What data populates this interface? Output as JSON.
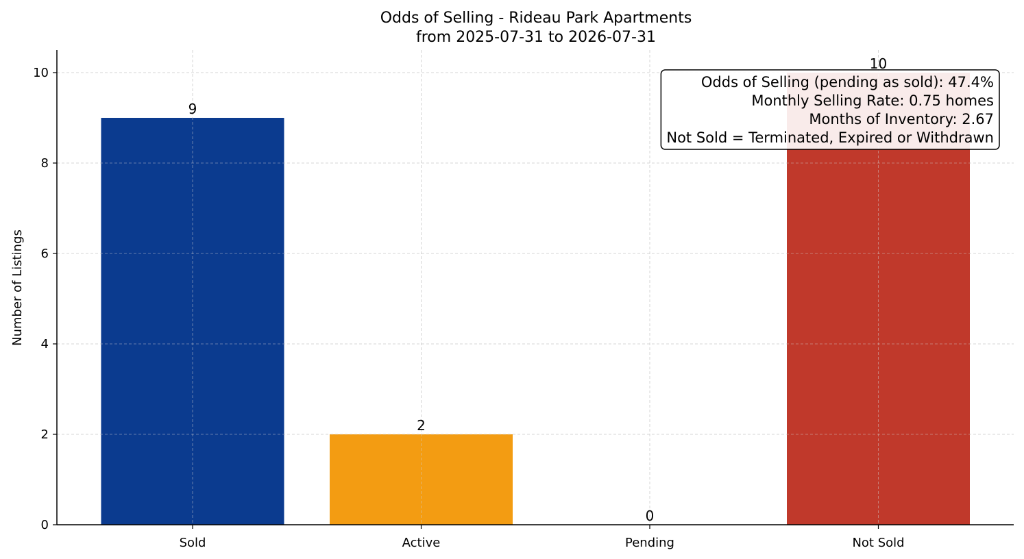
{
  "chart_data": {
    "type": "bar",
    "title": "Odds of Selling - Rideau Park Apartments",
    "subtitle": "from 2025-07-31 to 2026-07-31",
    "xlabel": "",
    "ylabel": "Number of Listings",
    "categories": [
      "Sold",
      "Active",
      "Pending",
      "Not Sold"
    ],
    "values": [
      9,
      2,
      0,
      10
    ],
    "colors": [
      "#0b3b8f",
      "#f39c12",
      "#f39c12",
      "#c0392b"
    ],
    "ylim": [
      0,
      10.5
    ],
    "yticks": [
      0,
      2,
      4,
      6,
      8,
      10
    ],
    "grid": true,
    "annotation": {
      "lines": [
        "Odds of Selling (pending as sold): 47.4%",
        "Monthly Selling Rate: 0.75 homes",
        "Months of Inventory: 2.67",
        "Not Sold = Terminated, Expired or Withdrawn"
      ],
      "placement": "top-right"
    }
  }
}
